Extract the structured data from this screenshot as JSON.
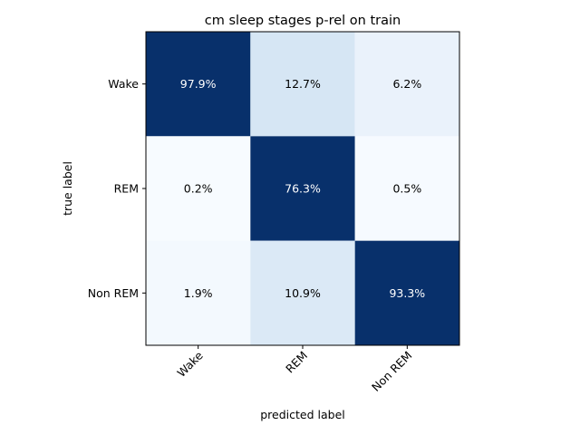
{
  "chart_data": {
    "type": "heatmap",
    "title": "cm sleep stages p-rel on train",
    "xlabel": "predicted label",
    "ylabel": "true label",
    "x_categories": [
      "Wake",
      "REM",
      "Non REM"
    ],
    "y_categories": [
      "Wake",
      "REM",
      "Non REM"
    ],
    "values": [
      [
        97.9,
        12.7,
        6.2
      ],
      [
        0.2,
        76.3,
        0.5
      ],
      [
        1.9,
        10.9,
        93.3
      ]
    ],
    "value_labels": [
      [
        "97.9%",
        "12.7%",
        "6.2%"
      ],
      [
        "0.2%",
        "76.3%",
        "0.5%"
      ],
      [
        "1.9%",
        "10.9%",
        "93.3%"
      ]
    ],
    "colormap": "Blues",
    "colors": {
      "light": "#f7fbff",
      "dark": "#08306b",
      "text_light": "#ffffff",
      "text_dark": "#000000"
    },
    "grid": false,
    "legend": "none"
  }
}
